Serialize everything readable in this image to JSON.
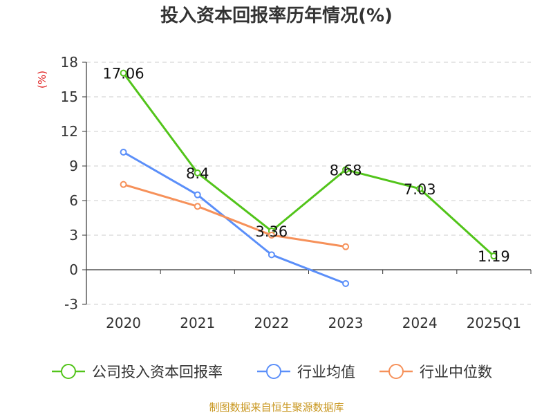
{
  "title": "投入资本回报率历年情况(%)",
  "unit": "(%)",
  "source": "制图数据来自恒生聚源数据库",
  "chart_data": {
    "type": "line",
    "categories": [
      "2020",
      "2021",
      "2022",
      "2023",
      "2024",
      "2025Q1"
    ],
    "ylim": [
      -3,
      18
    ],
    "yticks": [
      -3,
      0,
      3,
      6,
      9,
      12,
      15,
      18
    ],
    "grid": true,
    "legend_position": "bottom",
    "series": [
      {
        "name": "公司投入资本回报率",
        "color": "#52c41a",
        "values": [
          17.06,
          8.4,
          3.36,
          8.68,
          7.03,
          1.19
        ],
        "labels": [
          "17.06",
          "8.4",
          "3.36",
          "8.68",
          "7.03",
          "1.19"
        ]
      },
      {
        "name": "行业均值",
        "color": "#5b8ff9",
        "values": [
          10.2,
          6.5,
          1.3,
          -1.2,
          null,
          null
        ]
      },
      {
        "name": "行业中位数",
        "color": "#f6915a",
        "values": [
          7.4,
          5.5,
          3.0,
          2.0,
          null,
          null
        ]
      }
    ]
  }
}
